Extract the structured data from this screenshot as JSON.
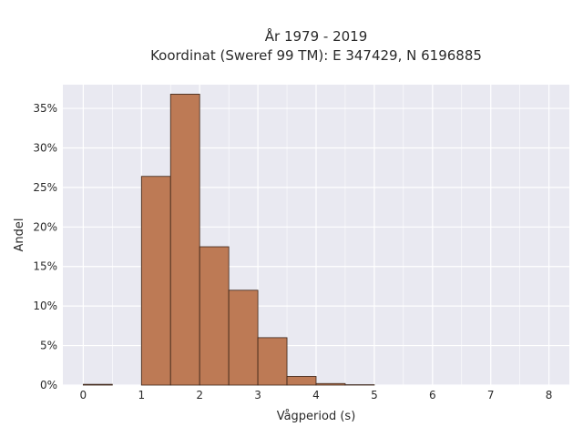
{
  "chart_data": {
    "type": "bar",
    "title_line1": "År 1979 - 2019",
    "title_line2": "Koordinat (Sweref 99 TM): E 347429, N 6196885",
    "xlabel": "Vågperiod (s)",
    "ylabel": "Andel",
    "bin_width": 0.5,
    "bins": [
      {
        "x0": 0.0,
        "x1": 0.5,
        "value": 0.1
      },
      {
        "x0": 0.5,
        "x1": 1.0,
        "value": 0.0
      },
      {
        "x0": 1.0,
        "x1": 1.5,
        "value": 26.4
      },
      {
        "x0": 1.5,
        "x1": 2.0,
        "value": 36.8
      },
      {
        "x0": 2.0,
        "x1": 2.5,
        "value": 17.5
      },
      {
        "x0": 2.5,
        "x1": 3.0,
        "value": 12.0
      },
      {
        "x0": 3.0,
        "x1": 3.5,
        "value": 6.0
      },
      {
        "x0": 3.5,
        "x1": 4.0,
        "value": 1.1
      },
      {
        "x0": 4.0,
        "x1": 4.5,
        "value": 0.2
      },
      {
        "x0": 4.5,
        "x1": 5.0,
        "value": 0.05
      }
    ],
    "xlim": [
      -0.35,
      8.35
    ],
    "ylim": [
      0,
      38
    ],
    "x_ticks": [
      0,
      1,
      2,
      3,
      4,
      5,
      6,
      7,
      8
    ],
    "y_ticks": [
      0,
      5,
      10,
      15,
      20,
      25,
      30,
      35
    ],
    "y_tick_labels": [
      "0%",
      "5%",
      "10%",
      "15%",
      "20%",
      "25%",
      "30%",
      "35%"
    ],
    "grid": true,
    "colors": {
      "bar_fill": "#bd7a55",
      "bar_edge": "#3b2418",
      "plot_bg": "#e9e9f1",
      "grid": "#ffffff"
    }
  }
}
